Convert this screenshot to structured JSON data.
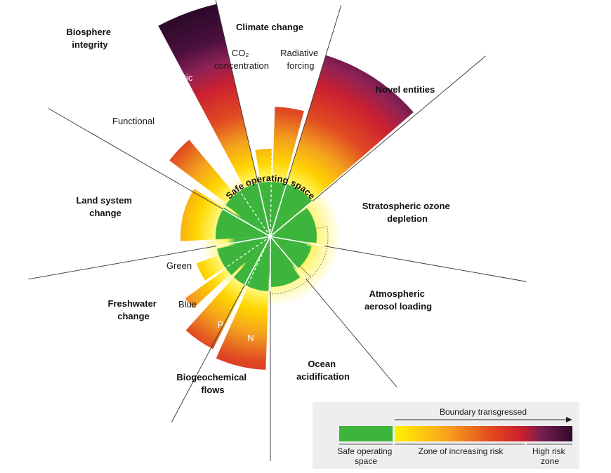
{
  "categories": {
    "biosphere_integrity": [
      "Biosphere",
      "integrity"
    ],
    "climate_change": "Climate change",
    "novel_entities": "Novel entities",
    "stratospheric_ozone": [
      "Stratospheric ozone",
      "depletion"
    ],
    "aerosol_loading": [
      "Atmospheric",
      "aerosol loading"
    ],
    "ocean_acidification": [
      "Ocean",
      "acidification"
    ],
    "biogeochemical_flows": [
      "Biogeochemical",
      "flows"
    ],
    "freshwater_change": [
      "Freshwater",
      "change"
    ],
    "land_system_change": [
      "Land system",
      "change"
    ]
  },
  "sub_labels": {
    "co2": [
      "CO₂",
      "concentration"
    ],
    "radiative_forcing": [
      "Radiative",
      "forcing"
    ],
    "genetic": "Genetic",
    "functional": "Functional",
    "green": "Green",
    "blue": "Blue",
    "p": "P",
    "n": "N"
  },
  "center_label": "Safe operating space",
  "legend": {
    "header": "Boundary transgressed",
    "safe": [
      "Safe operating",
      "space"
    ],
    "increasing": "Zone of increasing risk",
    "high": [
      "High risk",
      "zone"
    ]
  },
  "colors": {
    "safe_green": "#3db53d",
    "yellow": "#ffe600",
    "orange": "#f39c1e",
    "red": "#d42a24",
    "purple": "#7a1f52",
    "dark": "#2e0a2a"
  }
}
